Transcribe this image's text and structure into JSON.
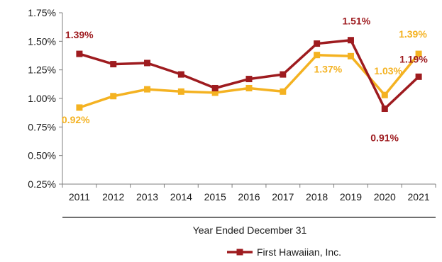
{
  "chart_data": {
    "type": "line",
    "x": [
      "2011",
      "2012",
      "2013",
      "2014",
      "2015",
      "2016",
      "2017",
      "2018",
      "2019",
      "2020",
      "2021"
    ],
    "xlabel": "Year Ended December 31",
    "ylabel": "",
    "ylim": [
      0.25,
      1.75
    ],
    "yticks": [
      "0.25%",
      "0.50%",
      "0.75%",
      "1.00%",
      "1.25%",
      "1.50%",
      "1.75%"
    ],
    "grid": false,
    "legend_position": "bottom",
    "series": [
      {
        "name": "First Hawaiian, Inc.",
        "color": "#9e1b1f",
        "values": [
          1.39,
          1.3,
          1.31,
          1.21,
          1.09,
          1.17,
          1.21,
          1.48,
          1.51,
          0.91,
          1.19
        ]
      },
      {
        "color": "#f4b221",
        "values": [
          0.92,
          1.02,
          1.08,
          1.06,
          1.05,
          1.09,
          1.06,
          1.38,
          1.37,
          1.03,
          1.39
        ]
      }
    ],
    "annotations": [
      {
        "series": 0,
        "index": 0,
        "text": "1.39%"
      },
      {
        "series": 0,
        "index": 8,
        "text": "1.51%"
      },
      {
        "series": 0,
        "index": 9,
        "text": "0.91%"
      },
      {
        "series": 0,
        "index": 10,
        "text": "1.19%"
      },
      {
        "series": 1,
        "index": 0,
        "text": "0.92%"
      },
      {
        "series": 1,
        "index": 8,
        "text": "1.37%"
      },
      {
        "series": 1,
        "index": 9,
        "text": "1.03%"
      },
      {
        "series": 1,
        "index": 10,
        "text": "1.39%"
      }
    ]
  }
}
